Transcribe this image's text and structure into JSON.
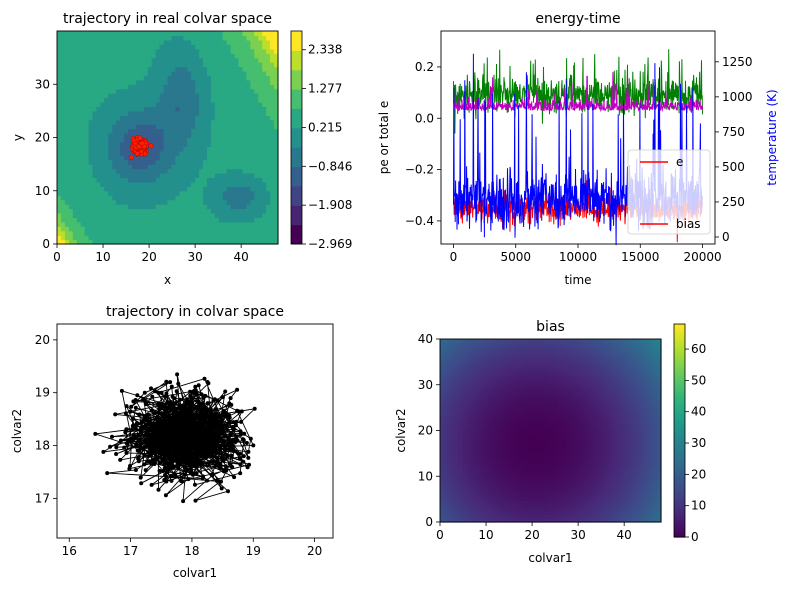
{
  "chart_data": [
    {
      "type": "heatmap",
      "title": "trajectory in real colvar space",
      "xlabel": "x",
      "ylabel": "y",
      "xlim": [
        0,
        48
      ],
      "ylim": [
        0,
        40
      ],
      "x_ticks": [
        "0",
        "10",
        "20",
        "30",
        "40"
      ],
      "y_ticks": [
        "0",
        "10",
        "20",
        "30"
      ],
      "colorbar_ticks": [
        "2.338",
        "1.277",
        "0.215",
        "−0.846",
        "−1.908",
        "−2.969"
      ],
      "colorbar_range": [
        -2.969,
        2.85
      ],
      "overlay": {
        "type": "scatter",
        "color": "#ff0000",
        "center": [
          17.9,
          18.2
        ]
      },
      "colormap": "viridis"
    },
    {
      "type": "line",
      "title": "energy-time",
      "xlabel": "time",
      "ylabel": "pe or total e",
      "ylabel_right": "temperature (K)",
      "xlim": [
        -1000,
        21000
      ],
      "ylim": [
        -0.49,
        0.34
      ],
      "ylim_right": [
        -50,
        1470
      ],
      "x_ticks": [
        "0",
        "5000",
        "10000",
        "15000",
        "20000"
      ],
      "y_ticks": [
        "−0.4",
        "−0.2",
        "0.0",
        "0.2"
      ],
      "y_ticks_right": [
        "0",
        "250",
        "500",
        "750",
        "1000",
        "1250"
      ],
      "series": [
        {
          "color": "#008000",
          "axis": "left",
          "mean": 0.09
        },
        {
          "color": "#bf00bf",
          "axis": "left",
          "mean": 0.03
        },
        {
          "color": "#ff0000",
          "axis": "left",
          "mean": -0.35
        },
        {
          "color": "#0000ff",
          "axis": "right",
          "mean": 270
        }
      ],
      "legend": {
        "placement": "lower-right",
        "entries": [
          "e",
          "bias"
        ]
      }
    },
    {
      "type": "scatter",
      "title": "trajectory in colvar space",
      "xlabel": "colvar1",
      "ylabel": "colvar2",
      "xlim": [
        15.8,
        20.3
      ],
      "ylim": [
        16.25,
        20.3
      ],
      "x_ticks": [
        "16",
        "17",
        "18",
        "19",
        "20"
      ],
      "y_ticks": [
        "17",
        "18",
        "19",
        "20"
      ],
      "center": [
        17.9,
        18.2
      ],
      "connected": true,
      "color": "#000000"
    },
    {
      "type": "heatmap",
      "title": "bias",
      "xlabel": "colvar1",
      "ylabel": "colvar2",
      "xlim": [
        0,
        48
      ],
      "ylim": [
        0,
        40
      ],
      "x_ticks": [
        "0",
        "10",
        "20",
        "30",
        "40"
      ],
      "y_ticks": [
        "0",
        "10",
        "20",
        "30",
        "40"
      ],
      "colorbar_ticks": [
        "0",
        "10",
        "20",
        "30",
        "40",
        "50",
        "60"
      ],
      "colorbar_range": [
        0,
        68
      ],
      "minimum": [
        21,
        17
      ],
      "colormap": "viridis"
    }
  ]
}
